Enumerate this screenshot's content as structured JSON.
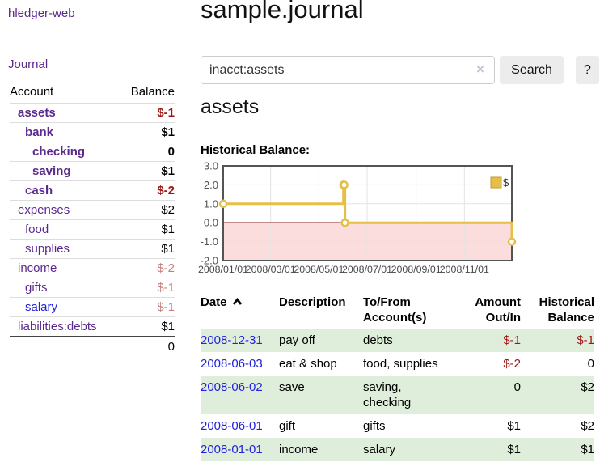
{
  "app": {
    "brand": "hledger-web",
    "nav": {
      "journal": "Journal"
    }
  },
  "colors": {
    "purple": "#5b2a8e",
    "blue": "#2222dd",
    "negative": "#9e1616",
    "negative_muted": "#c2807e",
    "row_green": "#dfeeda",
    "series_gold": "#e6bf48",
    "negative_region_pink": "#fcdddd",
    "zero_line_red": "#8b1515",
    "grid_grey": "#e3e3e3",
    "chart_border": "#545454"
  },
  "sidebar": {
    "headers": {
      "account": "Account",
      "balance": "Balance"
    },
    "accounts": [
      {
        "name": "assets",
        "balance": "$-1",
        "depth": 1,
        "emph": true,
        "name_style": "purple",
        "bal_style": "neg"
      },
      {
        "name": "bank",
        "balance": "$1",
        "depth": 2,
        "emph": true,
        "name_style": "purple",
        "bal_style": "pos"
      },
      {
        "name": "checking",
        "balance": "0",
        "depth": 3,
        "emph": true,
        "name_style": "purple",
        "bal_style": "pos"
      },
      {
        "name": "saving",
        "balance": "$1",
        "depth": 3,
        "emph": true,
        "name_style": "purple",
        "bal_style": "pos"
      },
      {
        "name": "cash",
        "balance": "$-2",
        "depth": 2,
        "emph": true,
        "name_style": "purple",
        "bal_style": "neg"
      },
      {
        "name": "expenses",
        "balance": "$2",
        "depth": 1,
        "emph": false,
        "name_style": "purple",
        "bal_style": "pos"
      },
      {
        "name": "food",
        "balance": "$1",
        "depth": 2,
        "emph": false,
        "name_style": "purple",
        "bal_style": "pos"
      },
      {
        "name": "supplies",
        "balance": "$1",
        "depth": 2,
        "emph": false,
        "name_style": "purple",
        "bal_style": "pos"
      },
      {
        "name": "income",
        "balance": "$-2",
        "depth": 1,
        "emph": false,
        "name_style": "purple",
        "bal_style": "negmuted"
      },
      {
        "name": "gifts",
        "balance": "$-1",
        "depth": 2,
        "emph": false,
        "name_style": "purple",
        "bal_style": "negmuted"
      },
      {
        "name": "salary",
        "balance": "$-1",
        "depth": 2,
        "emph": false,
        "name_style": "blue",
        "bal_style": "negmuted"
      },
      {
        "name": "liabilities:debts",
        "balance": "$1",
        "depth": 1,
        "emph": false,
        "name_style": "purple",
        "bal_style": "pos"
      }
    ],
    "total": "0"
  },
  "main": {
    "title": "sample.journal",
    "search": {
      "value": "inacct:assets",
      "clear": "×",
      "button": "Search",
      "help": "?"
    },
    "account_title": "assets",
    "chart_heading": "Historical Balance:"
  },
  "chart_data": {
    "type": "line",
    "step": true,
    "title": "Historical Balance",
    "series": [
      {
        "name": "$",
        "color": "#e6bf48",
        "points": [
          [
            "2008-01-01",
            1
          ],
          [
            "2008-06-01",
            2
          ],
          [
            "2008-06-02",
            2
          ],
          [
            "2008-06-03",
            0
          ],
          [
            "2008-12-31",
            -1
          ]
        ]
      }
    ],
    "x_range": [
      "2008-01-01",
      "2008-12-31"
    ],
    "ylim": [
      -2,
      3
    ],
    "yticks": [
      3.0,
      2.0,
      1.0,
      0.0,
      -1.0,
      -2.0
    ],
    "xticks": [
      {
        "date": "2008-01-01",
        "label": "2008/01/01"
      },
      {
        "date": "2008-03-01",
        "label": "2008/03/01"
      },
      {
        "date": "2008-05-01",
        "label": "2008/05/01"
      },
      {
        "date": "2008-07-01",
        "label": "2008/07/01"
      },
      {
        "date": "2008-09-01",
        "label": "2008/09/01"
      },
      {
        "date": "2008-11-01",
        "label": "2008/11/01"
      }
    ],
    "grid": true,
    "legend": {
      "label": "$",
      "position": "top-right"
    },
    "negative_region_below": 0
  },
  "register": {
    "headers": {
      "date": "Date",
      "description": "Description",
      "accounts": "To/From Account(s)",
      "amount": "Amount Out/In",
      "balance": "Historical Balance"
    },
    "rows": [
      {
        "date": "2008-12-31",
        "description": "pay off",
        "accounts": "debts",
        "amount": "$-1",
        "amount_style": "neg",
        "balance": "$-1",
        "balance_style": "neg"
      },
      {
        "date": "2008-06-03",
        "description": "eat & shop",
        "accounts": "food, supplies",
        "amount": "$-2",
        "amount_style": "neg",
        "balance": "0",
        "balance_style": "pos"
      },
      {
        "date": "2008-06-02",
        "description": "save",
        "accounts": "saving, checking",
        "amount": "0",
        "amount_style": "pos",
        "balance": "$2",
        "balance_style": "pos"
      },
      {
        "date": "2008-06-01",
        "description": "gift",
        "accounts": "gifts",
        "amount": "$1",
        "amount_style": "pos",
        "balance": "$2",
        "balance_style": "pos"
      },
      {
        "date": "2008-01-01",
        "description": "income",
        "accounts": "salary",
        "amount": "$1",
        "amount_style": "pos",
        "balance": "$1",
        "balance_style": "pos"
      }
    ]
  }
}
